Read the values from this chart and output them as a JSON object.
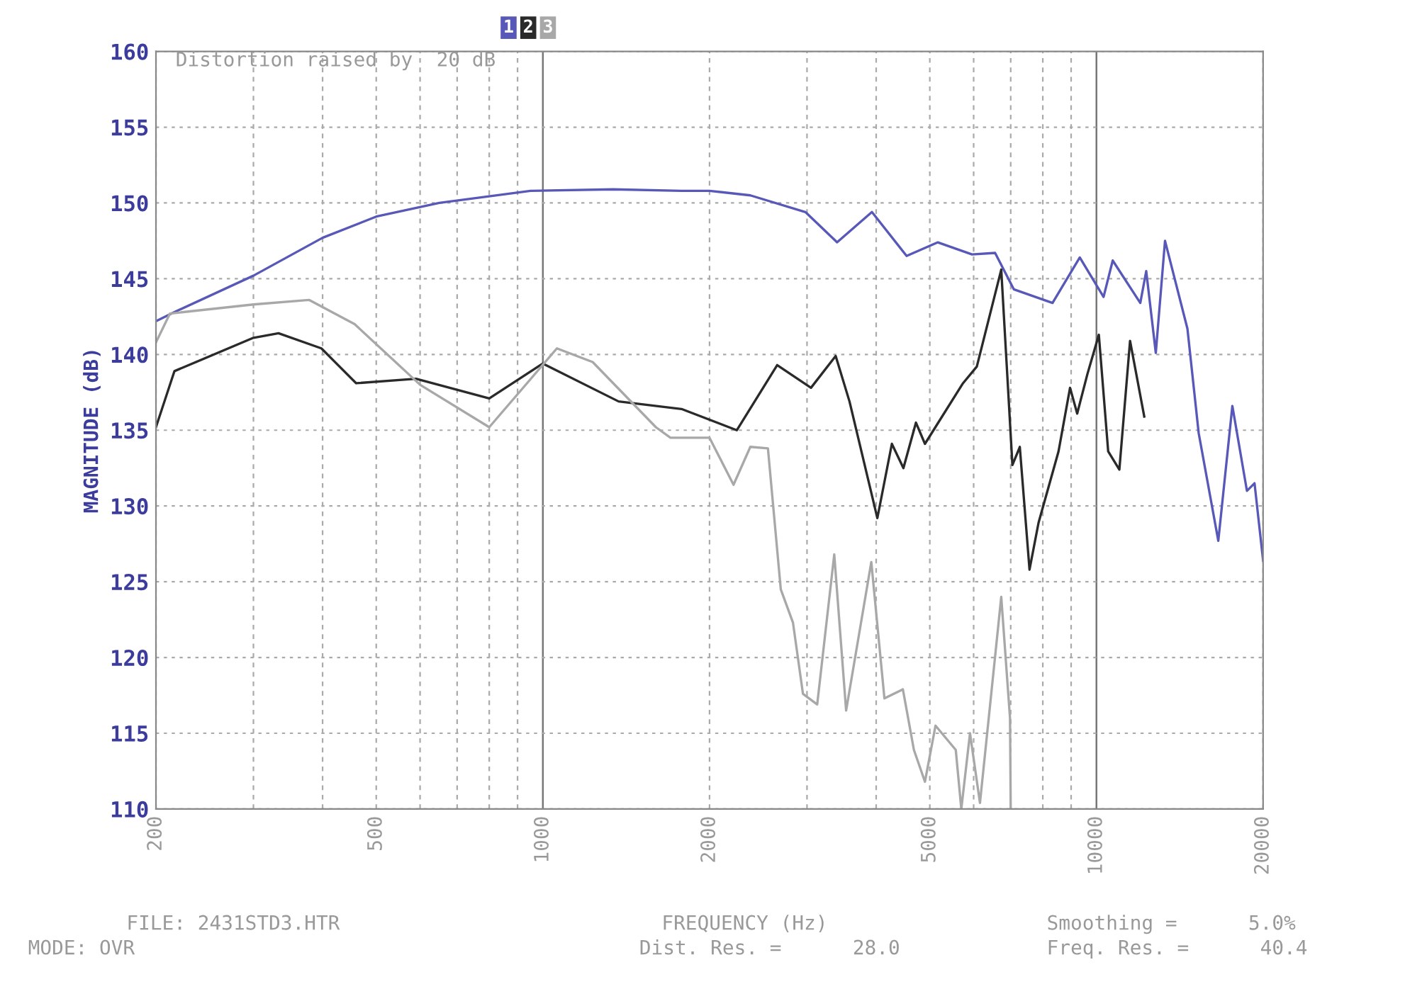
{
  "chart_data": {
    "type": "line",
    "ylabel": "MAGNITUDE (dB)",
    "xlabel": "FREQUENCY (Hz)",
    "log": "x",
    "grid": true,
    "legend": "top",
    "line_style": "solid",
    "marker": "none",
    "xlim": [
      200,
      20000
    ],
    "ylim": [
      110,
      160
    ],
    "xticks": [
      200,
      {
        "value": 300,
        "label": null
      },
      {
        "value": 400,
        "label": null
      },
      500,
      {
        "value": 600,
        "label": null
      },
      {
        "value": 700,
        "label": null
      },
      {
        "value": 800,
        "label": null
      },
      {
        "value": 900,
        "label": null
      },
      1000,
      2000,
      {
        "value": 3000,
        "label": null
      },
      {
        "value": 4000,
        "label": null
      },
      5000,
      {
        "value": 6000,
        "label": null
      },
      {
        "value": 7000,
        "label": null
      },
      {
        "value": 8000,
        "label": null
      },
      {
        "value": 9000,
        "label": null
      },
      10000,
      20000
    ],
    "yticks": [
      110,
      115,
      120,
      125,
      130,
      135,
      140,
      145,
      150,
      155,
      160
    ],
    "annotations": [
      "Distortion raised by  20 dB",
      "FILE: 2431STD3.HTR",
      "MODE: OVR",
      "Dist. Res. =      28.0",
      "Smoothing =      5.0%",
      "Freq. Res. =      40.4"
    ],
    "series": [
      {
        "name": "1",
        "color": "#5858b8",
        "x": [
          200,
          216,
          300,
          400,
          500,
          650,
          950,
          1340,
          1780,
          2000,
          2370,
          2980,
          3400,
          3930,
          4540,
          5170,
          5960,
          6560,
          7090,
          8330,
          9330,
          10300,
          10700,
          12000,
          12300,
          12800,
          13300,
          14600,
          15300,
          16600,
          17600,
          18700,
          19300,
          20000
        ],
        "values": [
          142.2,
          142.8,
          145.2,
          147.7,
          149.1,
          150.0,
          150.8,
          150.9,
          150.8,
          150.8,
          150.5,
          149.4,
          147.4,
          149.4,
          146.5,
          147.4,
          146.6,
          146.7,
          144.3,
          143.4,
          146.4,
          143.8,
          146.2,
          143.4,
          145.5,
          140.1,
          147.5,
          141.7,
          134.8,
          127.7,
          136.6,
          131.0,
          131.5,
          126.4
        ]
      },
      {
        "name": "2",
        "color": "#2a2a2a",
        "x": [
          200,
          216,
          300,
          333,
          398,
          460,
          590,
          800,
          1000,
          1370,
          1780,
          2240,
          2650,
          3050,
          3380,
          3580,
          4020,
          4270,
          4480,
          4720,
          4900,
          5740,
          6080,
          6730,
          7050,
          7270,
          7570,
          7860,
          8540,
          8960,
          9230,
          9630,
          10100,
          10500,
          11000,
          11500,
          12200
        ],
        "values": [
          135.2,
          138.9,
          141.1,
          141.4,
          140.4,
          138.1,
          138.4,
          137.1,
          139.4,
          136.9,
          136.4,
          135.0,
          139.3,
          137.8,
          139.9,
          136.9,
          129.2,
          134.1,
          132.5,
          135.5,
          134.1,
          138.1,
          139.2,
          145.6,
          132.7,
          133.9,
          125.8,
          128.9,
          133.6,
          137.8,
          136.1,
          138.7,
          141.3,
          133.6,
          132.4,
          140.9,
          135.9
        ]
      },
      {
        "name": "3",
        "color": "#a8a8a8",
        "x": [
          200,
          212,
          300,
          378,
          457,
          600,
          800,
          1060,
          1230,
          1600,
          1700,
          2000,
          2210,
          2370,
          2550,
          2690,
          2830,
          2950,
          3130,
          3360,
          3530,
          3920,
          4140,
          4470,
          4680,
          4900,
          5120,
          5570,
          5700,
          5910,
          6160,
          6730,
          6980,
          7000
        ],
        "values": [
          140.8,
          142.7,
          143.3,
          143.6,
          142.0,
          138.0,
          135.2,
          140.4,
          139.5,
          135.2,
          134.5,
          134.5,
          131.4,
          133.9,
          133.8,
          124.5,
          122.3,
          117.6,
          116.9,
          126.8,
          116.5,
          126.3,
          117.3,
          117.9,
          113.9,
          111.8,
          115.5,
          113.9,
          110.0,
          115.0,
          110.4,
          124.0,
          116.0,
          110.0
        ]
      }
    ]
  }
}
